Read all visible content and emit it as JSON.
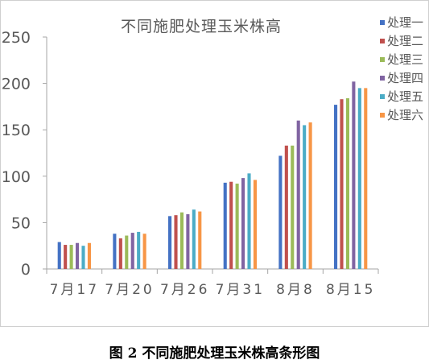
{
  "chart_data": {
    "type": "bar",
    "title": "不同施肥处理玉米株高",
    "categories": [
      "7月17",
      "7月20",
      "7月26",
      "7月31",
      "8月8",
      "8月15"
    ],
    "ylim": [
      0,
      250
    ],
    "yticks": [
      0,
      50,
      100,
      150,
      200,
      250
    ],
    "grid": false,
    "legend_position": "right",
    "series": [
      {
        "name": "处理一",
        "color": "#4472C4",
        "values": [
          29,
          38,
          57,
          93,
          122,
          177
        ]
      },
      {
        "name": "处理二",
        "color": "#C0504D",
        "values": [
          26,
          33,
          58,
          94,
          133,
          183
        ]
      },
      {
        "name": "处理三",
        "color": "#9BBB59",
        "values": [
          26,
          36,
          61,
          92,
          133,
          184
        ]
      },
      {
        "name": "处理四",
        "color": "#8064A2",
        "values": [
          28,
          39,
          59,
          98,
          160,
          202
        ]
      },
      {
        "name": "处理五",
        "color": "#4BACC6",
        "values": [
          25,
          40,
          64,
          103,
          155,
          195
        ]
      },
      {
        "name": "处理六",
        "color": "#F79646",
        "values": [
          28,
          38,
          62,
          96,
          158,
          195
        ]
      }
    ]
  },
  "caption": "图 2  不同施肥处理玉米株高条形图"
}
